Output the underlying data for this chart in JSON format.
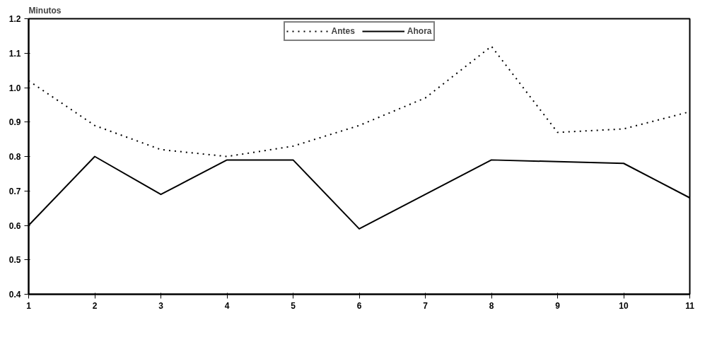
{
  "chart_data": {
    "type": "line",
    "ylabel": "Minutos",
    "x": [
      1,
      2,
      3,
      4,
      5,
      6,
      7,
      8,
      9,
      10,
      11
    ],
    "series": [
      {
        "name": "Antes",
        "color": "#000000",
        "line_style": "dotted",
        "values": [
          1.02,
          0.89,
          0.82,
          0.8,
          0.83,
          0.89,
          0.97,
          1.12,
          0.87,
          0.88,
          0.93
        ]
      },
      {
        "name": "Ahora",
        "color": "#000000",
        "line_style": "solid",
        "values": [
          0.6,
          0.8,
          0.69,
          0.79,
          0.79,
          0.59,
          0.69,
          0.79,
          0.785,
          0.78,
          0.68
        ]
      }
    ],
    "xlim": [
      1,
      11
    ],
    "xticks": [
      1,
      2,
      3,
      4,
      5,
      6,
      7,
      8,
      9,
      10,
      11
    ],
    "ylim": [
      0.4,
      1.2
    ],
    "yticks": [
      {
        "value": 0.4,
        "label": "0.4"
      },
      {
        "value": 0.5,
        "label": "0.5"
      },
      {
        "value": 0.6,
        "label": "0.6"
      },
      {
        "value": 0.7,
        "label": "0.7"
      },
      {
        "value": 0.8,
        "label": "0.8"
      },
      {
        "value": 0.9,
        "label": "0.9"
      },
      {
        "value": 1.0,
        "label": "1.0"
      },
      {
        "value": 1.1,
        "label": "1.1"
      },
      {
        "value": 1.2,
        "label": "1.2"
      }
    ],
    "grid": false,
    "legend": "top",
    "marker": "none"
  }
}
